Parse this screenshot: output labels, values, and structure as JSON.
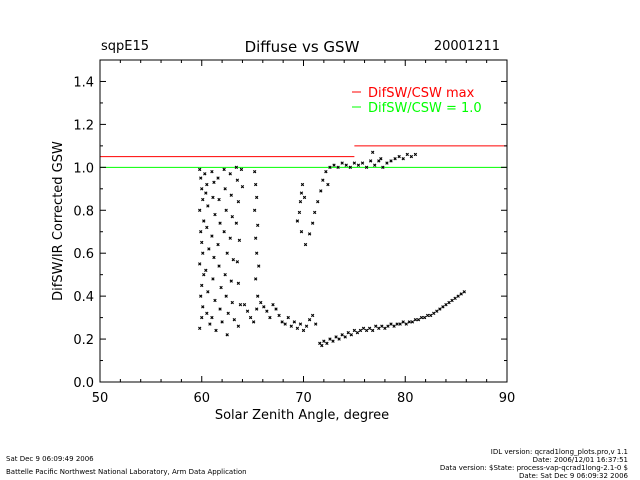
{
  "header": {
    "site": "sqpE15",
    "title": "Diffuse vs GSW",
    "date": "20001211"
  },
  "chart_data": {
    "type": "scatter",
    "title": "Diffuse vs GSW",
    "xlabel": "Solar Zenith Angle, degree",
    "ylabel": "DifSW/IR Corrected GSW",
    "xlim": [
      50,
      90
    ],
    "ylim": [
      0.0,
      1.5
    ],
    "x_ticks": [
      50,
      60,
      70,
      80,
      90
    ],
    "x_tick_labels": [
      "50",
      "60",
      "70",
      "80",
      "90"
    ],
    "y_ticks": [
      0.0,
      0.2,
      0.4,
      0.6,
      0.8,
      1.0,
      1.2,
      1.4
    ],
    "y_tick_labels": [
      "0.0",
      "0.2",
      "0.4",
      "0.6",
      "0.8",
      "1.0",
      "1.2",
      "1.4"
    ],
    "legend_position": "top-right",
    "reference_lines": [
      {
        "name": "DifSW/CSW max",
        "color": "#ff0000",
        "segments": [
          [
            [
              50,
              75
            ],
            1.05
          ],
          [
            [
              75,
              90
            ],
            1.1
          ]
        ]
      },
      {
        "name": "DifSW/CSW = 1.0",
        "color": "#00ff00",
        "segments": [
          [
            [
              50,
              90
            ],
            1.0
          ]
        ]
      }
    ],
    "legend": [
      {
        "label": "DifSW/CSW max",
        "color": "#ff0000"
      },
      {
        "label": "DifSW/CSW = 1.0",
        "color": "#00ff00"
      }
    ],
    "series": [
      {
        "marker_color": "#000000",
        "points": [
          [
            59.8,
            0.99
          ],
          [
            59.9,
            0.95
          ],
          [
            60.0,
            0.9
          ],
          [
            60.1,
            0.85
          ],
          [
            59.8,
            0.8
          ],
          [
            60.2,
            0.75
          ],
          [
            59.9,
            0.7
          ],
          [
            60.0,
            0.65
          ],
          [
            60.1,
            0.6
          ],
          [
            59.8,
            0.55
          ],
          [
            60.2,
            0.5
          ],
          [
            60.0,
            0.45
          ],
          [
            59.9,
            0.4
          ],
          [
            60.1,
            0.35
          ],
          [
            60.0,
            0.3
          ],
          [
            59.8,
            0.25
          ],
          [
            60.3,
            0.97
          ],
          [
            60.5,
            0.92
          ],
          [
            60.4,
            0.88
          ],
          [
            60.6,
            0.82
          ],
          [
            60.5,
            0.72
          ],
          [
            60.7,
            0.62
          ],
          [
            60.4,
            0.52
          ],
          [
            60.6,
            0.42
          ],
          [
            60.5,
            0.32
          ],
          [
            60.8,
            0.27
          ],
          [
            61.0,
            0.98
          ],
          [
            61.2,
            0.93
          ],
          [
            61.1,
            0.86
          ],
          [
            61.3,
            0.78
          ],
          [
            61.0,
            0.68
          ],
          [
            61.2,
            0.58
          ],
          [
            61.1,
            0.48
          ],
          [
            61.3,
            0.38
          ],
          [
            61.0,
            0.3
          ],
          [
            61.4,
            0.24
          ],
          [
            61.6,
            0.95
          ],
          [
            61.7,
            0.85
          ],
          [
            61.8,
            0.74
          ],
          [
            61.6,
            0.64
          ],
          [
            61.7,
            0.54
          ],
          [
            61.9,
            0.44
          ],
          [
            61.8,
            0.34
          ],
          [
            62.0,
            0.28
          ],
          [
            62.2,
            0.99
          ],
          [
            62.3,
            0.9
          ],
          [
            62.4,
            0.8
          ],
          [
            62.2,
            0.7
          ],
          [
            62.5,
            0.6
          ],
          [
            62.3,
            0.5
          ],
          [
            62.4,
            0.4
          ],
          [
            62.6,
            0.32
          ],
          [
            62.5,
            0.22
          ],
          [
            62.8,
            0.97
          ],
          [
            62.9,
            0.87
          ],
          [
            63.0,
            0.77
          ],
          [
            62.8,
            0.67
          ],
          [
            63.1,
            0.57
          ],
          [
            62.9,
            0.47
          ],
          [
            63.0,
            0.37
          ],
          [
            63.2,
            0.29
          ],
          [
            63.4,
            1.0
          ],
          [
            63.5,
            0.94
          ],
          [
            63.6,
            0.84
          ],
          [
            63.4,
            0.74
          ],
          [
            63.7,
            0.66
          ],
          [
            63.5,
            0.56
          ],
          [
            63.6,
            0.46
          ],
          [
            63.8,
            0.36
          ],
          [
            63.6,
            0.26
          ],
          [
            63.9,
            0.99
          ],
          [
            64.0,
            0.91
          ],
          [
            65.2,
            0.98
          ],
          [
            65.3,
            0.92
          ],
          [
            65.4,
            0.86
          ],
          [
            65.2,
            0.8
          ],
          [
            65.5,
            0.73
          ],
          [
            65.3,
            0.67
          ],
          [
            65.4,
            0.6
          ],
          [
            65.6,
            0.54
          ],
          [
            65.3,
            0.48
          ],
          [
            65.5,
            0.4
          ],
          [
            65.4,
            0.34
          ],
          [
            64.2,
            0.36
          ],
          [
            64.5,
            0.33
          ],
          [
            64.8,
            0.3
          ],
          [
            65.1,
            0.28
          ],
          [
            65.8,
            0.37
          ],
          [
            66.1,
            0.35
          ],
          [
            66.4,
            0.33
          ],
          [
            66.7,
            0.3
          ],
          [
            67.0,
            0.36
          ],
          [
            67.3,
            0.34
          ],
          [
            67.6,
            0.31
          ],
          [
            67.9,
            0.28
          ],
          [
            68.2,
            0.27
          ],
          [
            68.5,
            0.3
          ],
          [
            68.8,
            0.26
          ],
          [
            69.1,
            0.28
          ],
          [
            69.4,
            0.25
          ],
          [
            69.7,
            0.27
          ],
          [
            70.0,
            0.24
          ],
          [
            70.3,
            0.26
          ],
          [
            70.6,
            0.29
          ],
          [
            70.9,
            0.31
          ],
          [
            71.2,
            0.27
          ],
          [
            69.4,
            0.75
          ],
          [
            69.6,
            0.79
          ],
          [
            69.7,
            0.84
          ],
          [
            69.8,
            0.88
          ],
          [
            69.9,
            0.92
          ],
          [
            70.1,
            0.86
          ],
          [
            69.8,
            0.7
          ],
          [
            70.2,
            0.64
          ],
          [
            70.6,
            0.69
          ],
          [
            70.9,
            0.74
          ],
          [
            71.1,
            0.79
          ],
          [
            71.4,
            0.84
          ],
          [
            71.7,
            0.89
          ],
          [
            71.9,
            0.94
          ],
          [
            72.2,
            0.98
          ],
          [
            72.4,
            0.92
          ],
          [
            71.6,
            0.18
          ],
          [
            71.8,
            0.17
          ],
          [
            72.0,
            0.19
          ],
          [
            72.3,
            0.18
          ],
          [
            72.6,
            0.2
          ],
          [
            72.9,
            0.19
          ],
          [
            73.2,
            0.21
          ],
          [
            73.5,
            0.2
          ],
          [
            73.8,
            0.22
          ],
          [
            74.1,
            0.21
          ],
          [
            74.4,
            0.23
          ],
          [
            74.7,
            0.22
          ],
          [
            75.0,
            0.24
          ],
          [
            75.3,
            0.23
          ],
          [
            75.6,
            0.24
          ],
          [
            75.9,
            0.25
          ],
          [
            76.2,
            0.24
          ],
          [
            76.5,
            0.25
          ],
          [
            76.8,
            0.24
          ],
          [
            77.1,
            0.26
          ],
          [
            77.4,
            0.25
          ],
          [
            77.7,
            0.26
          ],
          [
            78.0,
            0.25
          ],
          [
            78.3,
            0.26
          ],
          [
            78.6,
            0.27
          ],
          [
            78.9,
            0.26
          ],
          [
            79.2,
            0.27
          ],
          [
            79.5,
            0.27
          ],
          [
            79.8,
            0.28
          ],
          [
            80.1,
            0.27
          ],
          [
            80.4,
            0.28
          ],
          [
            80.7,
            0.28
          ],
          [
            81.0,
            0.29
          ],
          [
            81.3,
            0.29
          ],
          [
            81.6,
            0.3
          ],
          [
            81.9,
            0.3
          ],
          [
            82.2,
            0.31
          ],
          [
            82.5,
            0.31
          ],
          [
            82.8,
            0.32
          ],
          [
            83.1,
            0.33
          ],
          [
            83.4,
            0.34
          ],
          [
            83.7,
            0.35
          ],
          [
            84.0,
            0.36
          ],
          [
            84.3,
            0.37
          ],
          [
            84.6,
            0.38
          ],
          [
            84.9,
            0.39
          ],
          [
            85.2,
            0.4
          ],
          [
            85.5,
            0.41
          ],
          [
            85.8,
            0.42
          ],
          [
            72.6,
            1.0
          ],
          [
            73.0,
            1.01
          ],
          [
            73.4,
            1.0
          ],
          [
            73.8,
            1.02
          ],
          [
            74.2,
            1.01
          ],
          [
            74.6,
            1.0
          ],
          [
            75.0,
            1.02
          ],
          [
            75.4,
            1.01
          ],
          [
            75.8,
            1.02
          ],
          [
            76.2,
            1.0
          ],
          [
            76.6,
            1.03
          ],
          [
            77.0,
            1.01
          ],
          [
            77.4,
            1.03
          ],
          [
            77.8,
            1.0
          ],
          [
            78.2,
            1.02
          ],
          [
            78.6,
            1.03
          ],
          [
            79.0,
            1.04
          ],
          [
            79.4,
            1.05
          ],
          [
            79.8,
            1.04
          ],
          [
            80.2,
            1.06
          ],
          [
            80.6,
            1.05
          ],
          [
            81.0,
            1.06
          ],
          [
            76.8,
            1.07
          ],
          [
            77.6,
            1.04
          ]
        ]
      }
    ]
  },
  "footer": {
    "left_line1": "Sat Dec  9 06:09:49 2006",
    "left_line2": "Battelle Pacific Northwest National Laboratory, Arm Data Application",
    "right_line1": "IDL version: qcrad1long_plots.pro,v 1.1",
    "right_line2": "Date: 2006/12/01 16:37:51",
    "right_line3": "Data version: $State: process-vap-qcrad1long-2.1-0 $",
    "right_line4": "Date: Sat Dec  9 06:09:32 2006"
  }
}
